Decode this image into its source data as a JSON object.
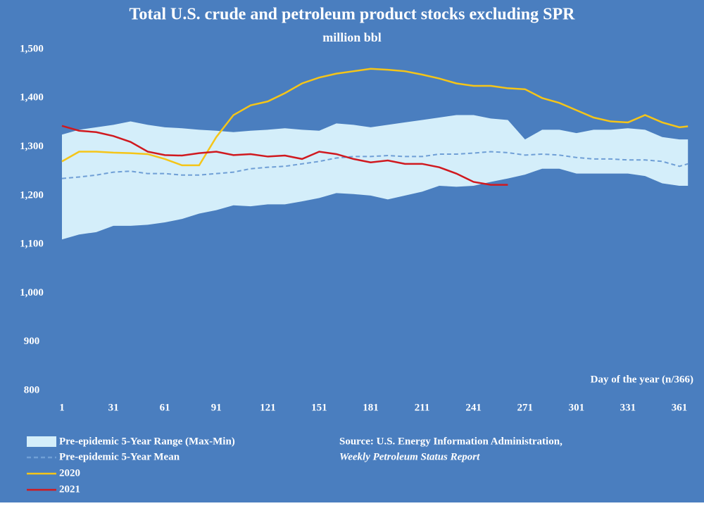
{
  "chart_data": {
    "type": "line",
    "title": "Total U.S. crude and petroleum product stocks excluding SPR",
    "subtitle": "million bbl",
    "x_label": "Day of the year (n/366)",
    "source": "Source: U.S. Energy Information Administration,",
    "source_report": "Weekly Petroleum Status Report",
    "background": "#4a7ebf",
    "x": [
      1,
      11,
      21,
      31,
      41,
      51,
      61,
      71,
      81,
      91,
      101,
      111,
      121,
      131,
      141,
      151,
      161,
      171,
      181,
      191,
      201,
      211,
      221,
      231,
      241,
      251,
      261,
      271,
      281,
      291,
      301,
      311,
      321,
      331,
      341,
      351,
      361,
      366
    ],
    "xlim": [
      1,
      366
    ],
    "xticks": [
      1,
      31,
      61,
      91,
      121,
      151,
      181,
      211,
      241,
      271,
      301,
      331,
      361
    ],
    "ylim": [
      800,
      1500
    ],
    "yticks": [
      800,
      900,
      {
        "value": 1000,
        "label": "1,000"
      },
      {
        "value": 1100,
        "label": "1,100"
      },
      {
        "value": 1200,
        "label": "1,200"
      },
      {
        "value": 1300,
        "label": "1,300"
      },
      {
        "value": 1400,
        "label": "1,400"
      },
      {
        "value": 1500,
        "label": "1,500"
      }
    ],
    "band": {
      "name": "Pre-epidemic 5-Year Range (Max-Min)",
      "color": "#d4eefa",
      "upper": [
        1325,
        1335,
        1340,
        1345,
        1352,
        1345,
        1340,
        1338,
        1335,
        1333,
        1330,
        1333,
        1335,
        1338,
        1335,
        1333,
        1348,
        1345,
        1340,
        1345,
        1350,
        1355,
        1360,
        1365,
        1365,
        1358,
        1355,
        1315,
        1335,
        1335,
        1328,
        1335,
        1335,
        1338,
        1335,
        1320,
        1315,
        1315
      ],
      "lower": [
        1110,
        1120,
        1125,
        1138,
        1138,
        1140,
        1145,
        1152,
        1163,
        1170,
        1180,
        1178,
        1182,
        1182,
        1188,
        1195,
        1205,
        1203,
        1200,
        1192,
        1200,
        1208,
        1220,
        1218,
        1220,
        1228,
        1235,
        1243,
        1255,
        1255,
        1245,
        1245,
        1245,
        1245,
        1240,
        1225,
        1220,
        1220
      ]
    },
    "series": [
      {
        "name": "Pre-epidemic 5-Year Mean",
        "color": "#6f9fd6",
        "dashed": true,
        "values": [
          1235,
          1238,
          1242,
          1248,
          1250,
          1245,
          1245,
          1242,
          1242,
          1245,
          1248,
          1255,
          1258,
          1260,
          1265,
          1270,
          1277,
          1280,
          1280,
          1282,
          1280,
          1280,
          1285,
          1285,
          1287,
          1290,
          1288,
          1283,
          1285,
          1283,
          1278,
          1275,
          1275,
          1273,
          1273,
          1270,
          1260,
          1265
        ]
      },
      {
        "name": "2020",
        "color": "#f5c518",
        "values": [
          1270,
          1290,
          1290,
          1288,
          1287,
          1285,
          1275,
          1262,
          1262,
          1320,
          1365,
          1385,
          1393,
          1410,
          1430,
          1442,
          1450,
          1455,
          1460,
          1458,
          1455,
          1448,
          1440,
          1430,
          1425,
          1425,
          1420,
          1418,
          1400,
          1390,
          1375,
          1360,
          1352,
          1350,
          1365,
          1350,
          1340,
          1342
        ]
      },
      {
        "name": "2021",
        "color": "#d0191f",
        "values": [
          1343,
          1333,
          1330,
          1322,
          1310,
          1290,
          1283,
          1282,
          1287,
          1290,
          1283,
          1285,
          1280,
          1282,
          1275,
          1290,
          1285,
          1275,
          1268,
          1272,
          1265,
          1265,
          1258,
          1245,
          1228,
          1222,
          1222,
          null,
          null,
          null,
          null,
          null,
          null,
          null,
          null,
          null,
          null,
          null
        ]
      }
    ]
  }
}
